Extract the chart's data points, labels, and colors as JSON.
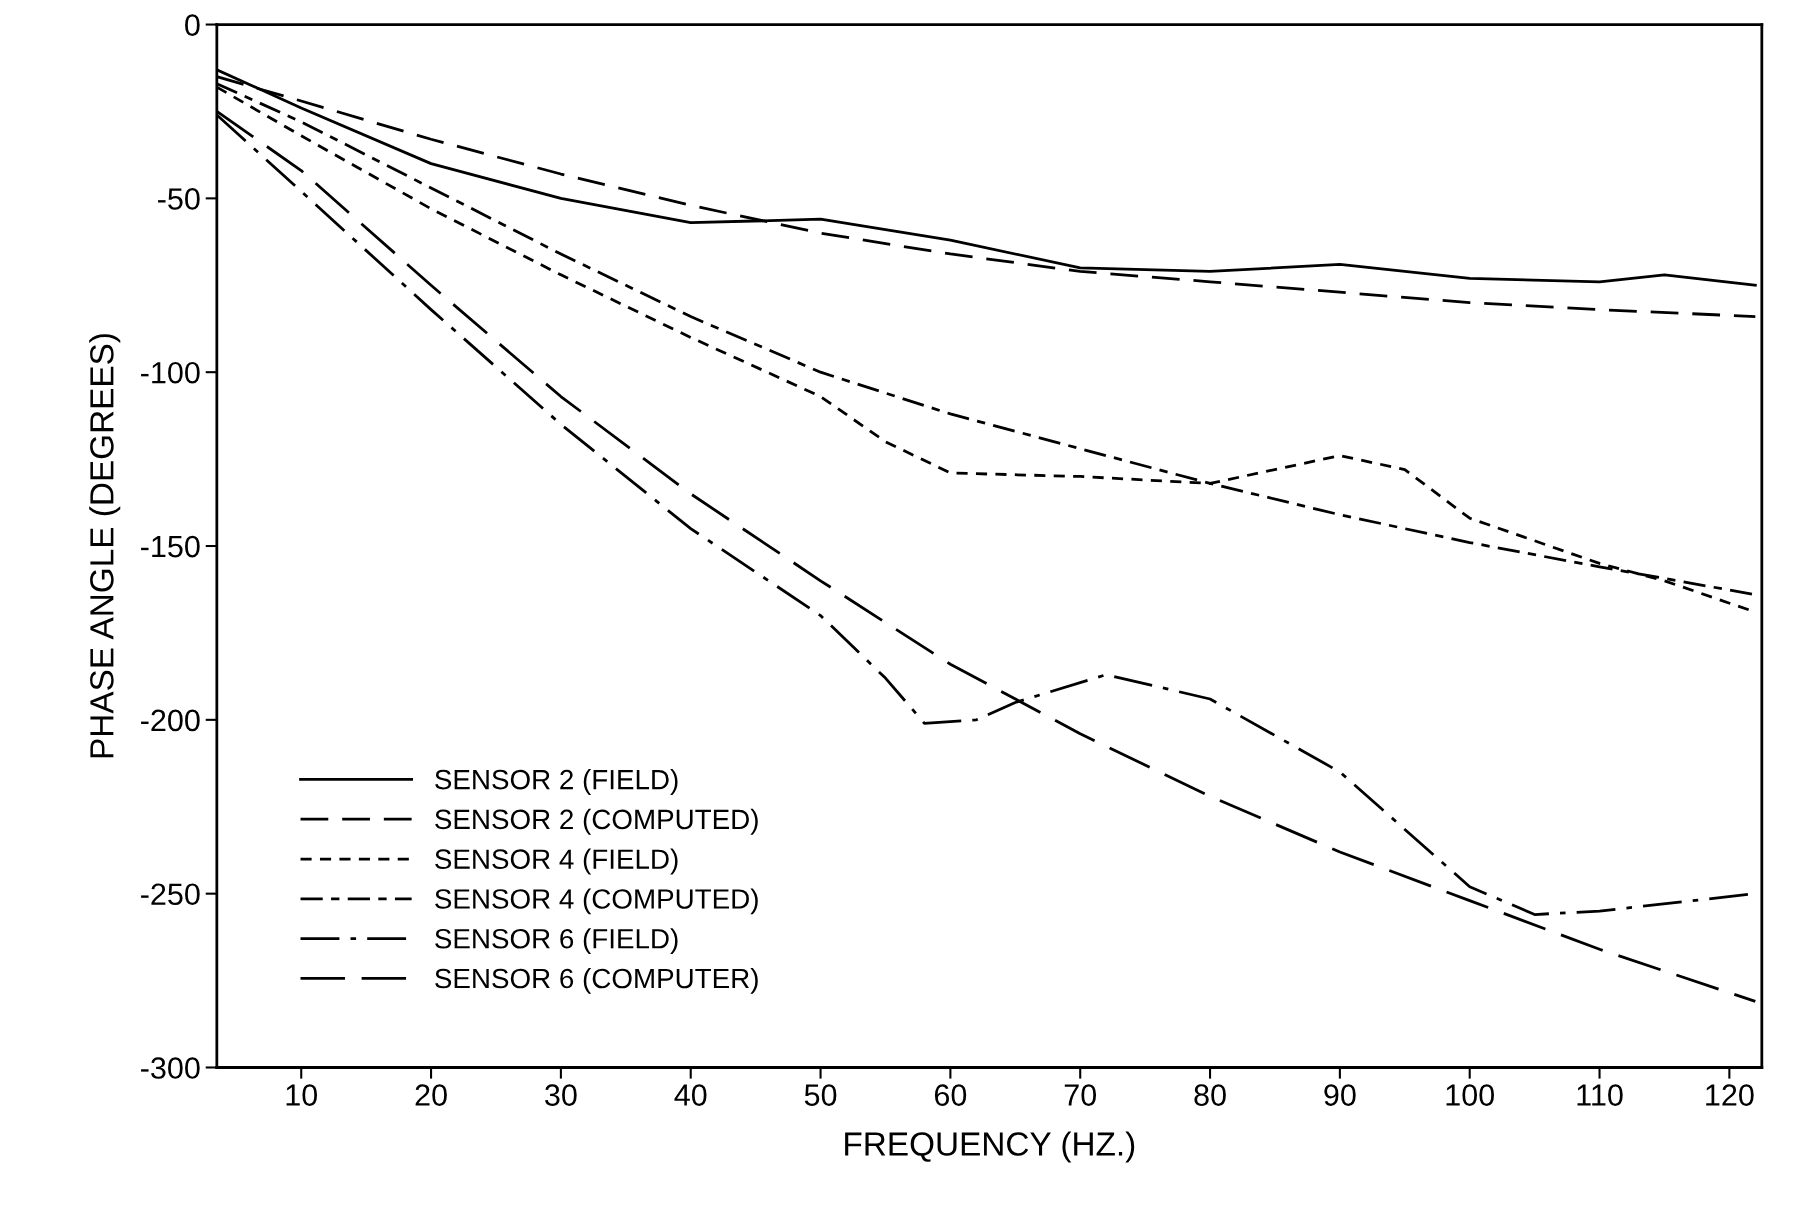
{
  "chart_data": {
    "type": "line",
    "xlabel": "FREQUENCY (HZ.)",
    "ylabel": "PHASE ANGLE (DEGREES)",
    "xlim": [
      3.5,
      122.5
    ],
    "ylim": [
      -300,
      0
    ],
    "xticks": [
      10,
      20,
      30,
      40,
      50,
      60,
      70,
      80,
      90,
      100,
      110,
      120
    ],
    "yticks": [
      0,
      -50,
      -100,
      -150,
      -200,
      -250,
      -300
    ],
    "grid": false,
    "legend": "bottom left",
    "marker": "none",
    "series": [
      {
        "name": "SENSOR 2 (FIELD)",
        "color": "#000000",
        "line_style": "solid",
        "x": [
          3.5,
          10,
          20,
          30,
          40,
          50,
          60,
          70,
          80,
          90,
          100,
          110,
          115,
          122
        ],
        "values": [
          -13,
          -24,
          -40,
          -50,
          -57,
          -56,
          -62,
          -70,
          -71,
          -69,
          -73,
          -74,
          -72,
          -75
        ]
      },
      {
        "name": "SENSOR 2 (COMPUTED)",
        "color": "#000000",
        "line_style": "longdash",
        "x": [
          3.5,
          10,
          20,
          30,
          40,
          50,
          60,
          70,
          80,
          90,
          100,
          110,
          122
        ],
        "values": [
          -15,
          -22,
          -33,
          -43,
          -52,
          -60,
          -66,
          -71,
          -74,
          -77,
          -80,
          -82,
          -84
        ]
      },
      {
        "name": "SENSOR 4 (FIELD)",
        "color": "#000000",
        "line_style": "dashed",
        "x": [
          3.5,
          10,
          20,
          30,
          40,
          50,
          55,
          60,
          70,
          80,
          90,
          95,
          100,
          110,
          115,
          122
        ],
        "values": [
          -18,
          -32,
          -53,
          -72,
          -90,
          -107,
          -120,
          -129,
          -130,
          -132,
          -124,
          -128,
          -142,
          -155,
          -160,
          -169
        ]
      },
      {
        "name": "SENSOR 4 (COMPUTED)",
        "color": "#000000",
        "line_style": "dashdot",
        "x": [
          3.5,
          10,
          20,
          30,
          40,
          50,
          60,
          70,
          80,
          90,
          100,
          110,
          122
        ],
        "values": [
          -17,
          -28,
          -47,
          -66,
          -84,
          -100,
          -112,
          -122,
          -132,
          -141,
          -149,
          -156,
          -164
        ]
      },
      {
        "name": "SENSOR 6 (FIELD)",
        "color": "#000000",
        "line_style": "longdashdot",
        "x": [
          3.5,
          10,
          20,
          30,
          40,
          50,
          55,
          58,
          62,
          65,
          72,
          80,
          90,
          100,
          105,
          110,
          122
        ],
        "values": [
          -26,
          -48,
          -82,
          -115,
          -145,
          -170,
          -188,
          -201,
          -200,
          -195,
          -187,
          -194,
          -215,
          -248,
          -256,
          -255,
          -250
        ]
      },
      {
        "name": "SENSOR 6 (COMPUTER)",
        "color": "#000000",
        "line_style": "longdash2",
        "x": [
          3.5,
          10,
          20,
          30,
          40,
          50,
          60,
          70,
          80,
          90,
          100,
          110,
          122
        ],
        "values": [
          -25,
          -42,
          -75,
          -107,
          -135,
          -160,
          -184,
          -204,
          -222,
          -238,
          -252,
          -266,
          -281
        ]
      }
    ]
  }
}
